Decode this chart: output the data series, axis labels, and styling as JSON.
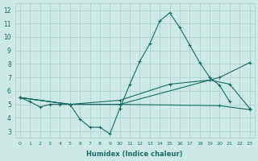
{
  "xlabel": "Humidex (Indice chaleur)",
  "xlim": [
    -0.5,
    23.5
  ],
  "ylim": [
    2.5,
    12.5
  ],
  "xticks": [
    0,
    1,
    2,
    3,
    4,
    5,
    6,
    7,
    8,
    9,
    10,
    11,
    12,
    13,
    14,
    15,
    16,
    17,
    18,
    19,
    20,
    21,
    22,
    23
  ],
  "yticks": [
    3,
    4,
    5,
    6,
    7,
    8,
    9,
    10,
    11,
    12
  ],
  "background_color": "#cce9e5",
  "grid_color": "#aacfca",
  "line_color": "#1a6b63",
  "line1_x": [
    0,
    1,
    2,
    3,
    4,
    5,
    6,
    7,
    8,
    9,
    10,
    11,
    12,
    13,
    14,
    15,
    16,
    17,
    18,
    19,
    20,
    21
  ],
  "line1_y": [
    5.5,
    5.2,
    4.8,
    5.0,
    5.0,
    5.0,
    3.9,
    3.3,
    3.3,
    2.8,
    4.7,
    6.5,
    8.2,
    9.5,
    11.2,
    11.8,
    10.7,
    9.4,
    8.1,
    7.0,
    6.4,
    5.2
  ],
  "line2_x": [
    0,
    5,
    10,
    20,
    23
  ],
  "line2_y": [
    5.5,
    5.0,
    5.0,
    7.0,
    8.1
  ],
  "line3_x": [
    0,
    5,
    10,
    15,
    19,
    21,
    23
  ],
  "line3_y": [
    5.5,
    5.0,
    5.3,
    6.5,
    6.8,
    6.5,
    4.7
  ],
  "line4_x": [
    0,
    5,
    10,
    20,
    23
  ],
  "line4_y": [
    5.5,
    5.0,
    5.0,
    4.9,
    4.6
  ]
}
